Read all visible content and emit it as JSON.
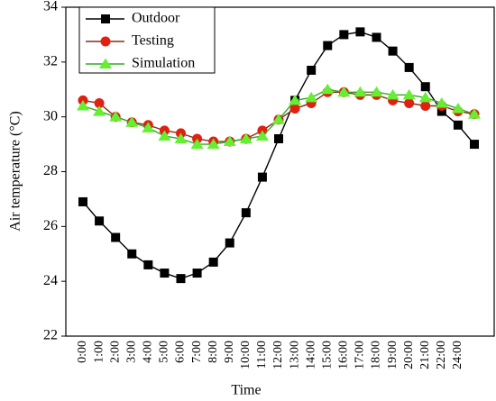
{
  "chart_data": {
    "type": "line",
    "x_label": "Time",
    "y_label": "Air temperature (°C)",
    "categories": [
      "0:00",
      "1:00",
      "2:00",
      "3:00",
      "4:00",
      "5:00",
      "6:00",
      "7:00",
      "8:00",
      "9:00",
      "10:00",
      "11:00",
      "12:00",
      "13:00",
      "14:00",
      "15:00",
      "16:00",
      "17:00",
      "18:00",
      "19:00",
      "20:00",
      "21:00",
      "22:00",
      "24:00",
      null
    ],
    "series": [
      {
        "name": "Outdoor",
        "color": "#000000",
        "marker_color": "#000000",
        "marker": "square",
        "values": [
          26.9,
          26.2,
          25.6,
          25.0,
          24.6,
          24.3,
          24.1,
          24.3,
          24.7,
          25.4,
          26.5,
          27.8,
          29.2,
          30.6,
          31.7,
          32.6,
          33.0,
          33.1,
          32.9,
          32.4,
          31.8,
          31.1,
          30.2,
          29.7,
          29.0
        ]
      },
      {
        "name": "Testing",
        "color": "#8b2a1a",
        "marker_color": "#e02010",
        "marker": "circle",
        "values": [
          30.6,
          30.5,
          30.0,
          29.8,
          29.7,
          29.5,
          29.4,
          29.2,
          29.1,
          29.1,
          29.2,
          29.5,
          29.9,
          30.3,
          30.5,
          30.9,
          30.9,
          30.8,
          30.8,
          30.6,
          30.5,
          30.4,
          30.4,
          30.2,
          30.1
        ]
      },
      {
        "name": "Simulation",
        "color": "#33aa22",
        "marker_color": "#66ee33",
        "marker": "triangle",
        "values": [
          30.4,
          30.2,
          30.0,
          29.8,
          29.6,
          29.3,
          29.2,
          29.0,
          29.0,
          29.1,
          29.2,
          29.3,
          29.9,
          30.6,
          30.7,
          31.0,
          30.9,
          30.9,
          30.9,
          30.8,
          30.8,
          30.7,
          30.5,
          30.3,
          30.1
        ]
      }
    ],
    "ylim": [
      22,
      34
    ],
    "yticks": [
      22,
      24,
      26,
      28,
      30,
      32,
      34
    ],
    "grid": false,
    "legend": "upper-left"
  }
}
